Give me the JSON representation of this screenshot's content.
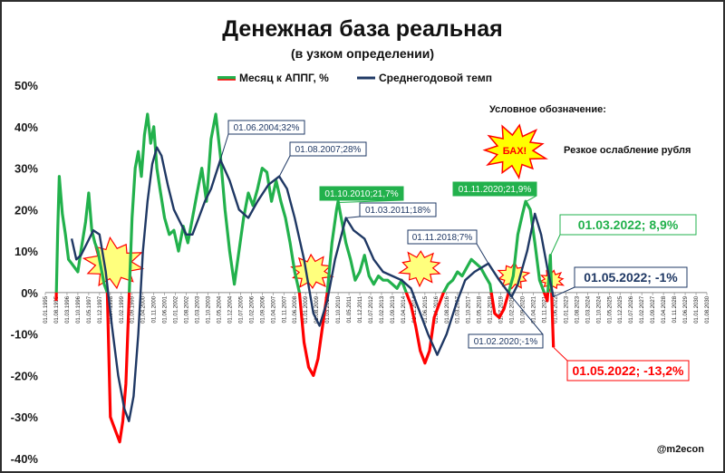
{
  "chart_data": {
    "type": "line",
    "title": "Денежная база реальная",
    "subtitle": "(в узком определении)",
    "ylim": [
      -40,
      50
    ],
    "yticks": [
      50,
      40,
      30,
      20,
      10,
      0,
      -10,
      -20,
      -30,
      -40
    ],
    "ytick_labels": [
      "50%",
      "40%",
      "30%",
      "20%",
      "10%",
      "0%",
      "-10%",
      "-20%",
      "-30%",
      "-40%"
    ],
    "x_start": "1995-01",
    "x_end": "2030-08",
    "grid": false,
    "legend_position": "top-center",
    "series": [
      {
        "name": "Месяц к АППГ, %",
        "color": "#22b14c",
        "negative_color": "#ff0000",
        "points": [
          [
            "1995-08",
            -2
          ],
          [
            "1995-09",
            15
          ],
          [
            "1995-10",
            28
          ],
          [
            "1995-12",
            19
          ],
          [
            "1996-02",
            14
          ],
          [
            "1996-04",
            8
          ],
          [
            "1996-06",
            7
          ],
          [
            "1996-08",
            6
          ],
          [
            "1996-10",
            5
          ],
          [
            "1996-12",
            10
          ],
          [
            "1997-03",
            17
          ],
          [
            "1997-05",
            24
          ],
          [
            "1997-07",
            15
          ],
          [
            "1997-09",
            12
          ],
          [
            "1997-11",
            10
          ],
          [
            "1998-01",
            6
          ],
          [
            "1998-03",
            2
          ],
          [
            "1998-05",
            0
          ],
          [
            "1998-07",
            -30
          ],
          [
            "1998-09",
            -32
          ],
          [
            "1998-11",
            -34
          ],
          [
            "1999-01",
            -36
          ],
          [
            "1999-03",
            -31
          ],
          [
            "1999-05",
            -22
          ],
          [
            "1999-07",
            -2
          ],
          [
            "1999-09",
            18
          ],
          [
            "1999-11",
            30
          ],
          [
            "2000-01",
            34
          ],
          [
            "2000-03",
            28
          ],
          [
            "2000-05",
            38
          ],
          [
            "2000-07",
            43
          ],
          [
            "2000-09",
            36
          ],
          [
            "2000-11",
            40
          ],
          [
            "2001-01",
            30
          ],
          [
            "2001-03",
            25
          ],
          [
            "2001-06",
            18
          ],
          [
            "2001-09",
            14
          ],
          [
            "2001-12",
            15
          ],
          [
            "2002-03",
            10
          ],
          [
            "2002-06",
            16
          ],
          [
            "2002-09",
            12
          ],
          [
            "2002-12",
            18
          ],
          [
            "2003-03",
            24
          ],
          [
            "2003-06",
            30
          ],
          [
            "2003-09",
            22
          ],
          [
            "2003-12",
            37
          ],
          [
            "2004-03",
            43
          ],
          [
            "2004-06",
            33
          ],
          [
            "2004-09",
            20
          ],
          [
            "2004-12",
            10
          ],
          [
            "2005-03",
            2
          ],
          [
            "2005-06",
            10
          ],
          [
            "2005-09",
            18
          ],
          [
            "2005-12",
            24
          ],
          [
            "2006-03",
            21
          ],
          [
            "2006-06",
            25
          ],
          [
            "2006-09",
            30
          ],
          [
            "2006-12",
            29
          ],
          [
            "2007-03",
            22
          ],
          [
            "2007-06",
            27
          ],
          [
            "2007-09",
            22
          ],
          [
            "2007-12",
            18
          ],
          [
            "2008-03",
            12
          ],
          [
            "2008-06",
            5
          ],
          [
            "2008-09",
            0
          ],
          [
            "2008-12",
            -12
          ],
          [
            "2009-03",
            -18
          ],
          [
            "2009-06",
            -20
          ],
          [
            "2009-09",
            -16
          ],
          [
            "2009-12",
            -8
          ],
          [
            "2010-03",
            0
          ],
          [
            "2010-06",
            12
          ],
          [
            "2010-09",
            20
          ],
          [
            "2010-10",
            22
          ],
          [
            "2010-12",
            18
          ],
          [
            "2011-03",
            12
          ],
          [
            "2011-06",
            8
          ],
          [
            "2011-09",
            3
          ],
          [
            "2011-12",
            5
          ],
          [
            "2012-03",
            9
          ],
          [
            "2012-06",
            4
          ],
          [
            "2012-09",
            2
          ],
          [
            "2012-12",
            4
          ],
          [
            "2013-03",
            3
          ],
          [
            "2013-06",
            3
          ],
          [
            "2013-09",
            2
          ],
          [
            "2013-12",
            1
          ],
          [
            "2014-03",
            3
          ],
          [
            "2014-06",
            0
          ],
          [
            "2014-09",
            -3
          ],
          [
            "2014-12",
            -8
          ],
          [
            "2015-03",
            -14
          ],
          [
            "2015-06",
            -17
          ],
          [
            "2015-09",
            -14
          ],
          [
            "2015-12",
            -6
          ],
          [
            "2016-03",
            -3
          ],
          [
            "2016-06",
            0
          ],
          [
            "2016-09",
            2
          ],
          [
            "2016-12",
            3
          ],
          [
            "2017-03",
            5
          ],
          [
            "2017-06",
            4
          ],
          [
            "2017-09",
            6
          ],
          [
            "2017-12",
            8
          ],
          [
            "2018-03",
            7
          ],
          [
            "2018-06",
            6
          ],
          [
            "2018-09",
            4
          ],
          [
            "2018-12",
            2
          ],
          [
            "2019-03",
            -5
          ],
          [
            "2019-06",
            -6
          ],
          [
            "2019-09",
            -4
          ],
          [
            "2019-12",
            0
          ],
          [
            "2020-03",
            4
          ],
          [
            "2020-06",
            14
          ],
          [
            "2020-09",
            19
          ],
          [
            "2020-11",
            22
          ],
          [
            "2021-02",
            20
          ],
          [
            "2021-05",
            12
          ],
          [
            "2021-08",
            3
          ],
          [
            "2021-11",
            0
          ],
          [
            "2022-01",
            -2
          ],
          [
            "2022-03",
            9
          ],
          [
            "2022-05",
            -13.2
          ]
        ]
      },
      {
        "name": "Среднегодовой темп",
        "color": "#1f3864",
        "points": [
          [
            "1996-06",
            13
          ],
          [
            "1996-09",
            8
          ],
          [
            "1996-12",
            9
          ],
          [
            "1997-04",
            12
          ],
          [
            "1997-08",
            15
          ],
          [
            "1997-12",
            14
          ],
          [
            "1998-04",
            5
          ],
          [
            "1998-08",
            -8
          ],
          [
            "1998-12",
            -20
          ],
          [
            "1999-04",
            -28
          ],
          [
            "1999-07",
            -31
          ],
          [
            "1999-10",
            -25
          ],
          [
            "2000-01",
            -10
          ],
          [
            "2000-04",
            10
          ],
          [
            "2000-07",
            22
          ],
          [
            "2000-10",
            31
          ],
          [
            "2001-01",
            35
          ],
          [
            "2001-04",
            33
          ],
          [
            "2001-08",
            26
          ],
          [
            "2001-12",
            20
          ],
          [
            "2002-04",
            17
          ],
          [
            "2002-08",
            14
          ],
          [
            "2002-12",
            14
          ],
          [
            "2003-04",
            18
          ],
          [
            "2003-08",
            22
          ],
          [
            "2003-12",
            25
          ],
          [
            "2004-06",
            32
          ],
          [
            "2004-12",
            27
          ],
          [
            "2005-06",
            20
          ],
          [
            "2005-12",
            18
          ],
          [
            "2006-06",
            22
          ],
          [
            "2007-01",
            26
          ],
          [
            "2007-08",
            28
          ],
          [
            "2008-01",
            25
          ],
          [
            "2008-06",
            18
          ],
          [
            "2008-12",
            8
          ],
          [
            "2009-06",
            -5
          ],
          [
            "2009-10",
            -8
          ],
          [
            "2010-03",
            -2
          ],
          [
            "2010-08",
            8
          ],
          [
            "2011-03",
            18
          ],
          [
            "2011-08",
            15
          ],
          [
            "2012-03",
            13
          ],
          [
            "2012-09",
            8
          ],
          [
            "2013-03",
            5
          ],
          [
            "2013-09",
            4
          ],
          [
            "2014-03",
            3
          ],
          [
            "2014-09",
            1
          ],
          [
            "2015-03",
            -5
          ],
          [
            "2015-08",
            -10
          ],
          [
            "2016-02",
            -15
          ],
          [
            "2016-08",
            -10
          ],
          [
            "2017-02",
            -3
          ],
          [
            "2017-08",
            3
          ],
          [
            "2018-02",
            5
          ],
          [
            "2018-11",
            7
          ],
          [
            "2019-06",
            3
          ],
          [
            "2020-02",
            -1
          ],
          [
            "2020-06",
            2
          ],
          [
            "2020-12",
            10
          ],
          [
            "2021-05",
            19
          ],
          [
            "2021-09",
            14
          ],
          [
            "2022-01",
            6
          ],
          [
            "2022-05",
            -1
          ]
        ]
      }
    ],
    "annotations": [
      {
        "text": "01.06.2004;32%",
        "date": "2004-06",
        "value": 32,
        "style": "navy"
      },
      {
        "text": "01.08.2007;28%",
        "date": "2007-08",
        "value": 28,
        "style": "navy"
      },
      {
        "text": "01.10.2010;21,7%",
        "date": "2010-10",
        "value": 21.7,
        "style": "green"
      },
      {
        "text": "01.03.2011;18%",
        "date": "2011-03",
        "value": 18,
        "style": "navy"
      },
      {
        "text": "01.11.2018;7%",
        "date": "2018-11",
        "value": 7,
        "style": "navy"
      },
      {
        "text": "01.11.2020;21,9%",
        "date": "2020-11",
        "value": 21.9,
        "style": "green"
      },
      {
        "text": "01.02.2020;-1%",
        "date": "2020-02",
        "value": -1,
        "style": "navy"
      },
      {
        "text": "01.03.2022; 8,9%",
        "date": "2022-03",
        "value": 8.9,
        "style": "green-big"
      },
      {
        "text": "01.05.2022; -1%",
        "date": "2022-05",
        "value": -1,
        "style": "navy-big"
      },
      {
        "text": "01.05.2022; -13,2%",
        "date": "2022-05",
        "value": -13.2,
        "style": "red-big"
      }
    ],
    "bursts": [
      {
        "date": "1998-09",
        "value": 7,
        "size": "large"
      },
      {
        "date": "2009-05",
        "value": 5,
        "size": "medium"
      },
      {
        "date": "2015-03",
        "value": 6,
        "size": "medium"
      },
      {
        "date": "2020-03",
        "value": 4,
        "size": "small"
      },
      {
        "date": "2022-04",
        "value": 3,
        "size": "tiny"
      }
    ],
    "note_title": "Условное обозначение:",
    "note_burst_label": "БАХ!",
    "note_text": "Резкое ослабление рубля",
    "credit": "@m2econ"
  }
}
